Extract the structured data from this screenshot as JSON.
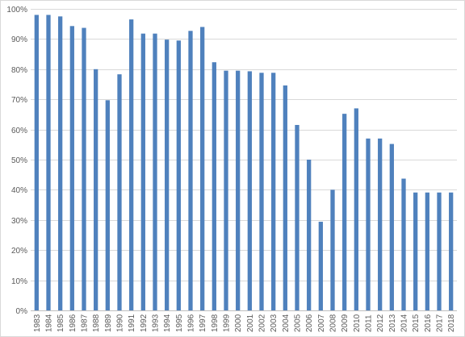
{
  "chart_data": {
    "type": "bar",
    "categories": [
      "1983",
      "1984",
      "1985",
      "1986",
      "1987",
      "1988",
      "1989",
      "1990",
      "1991",
      "1992",
      "1993",
      "1994",
      "1995",
      "1996",
      "1997",
      "1998",
      "1999",
      "2000",
      "2001",
      "2002",
      "2003",
      "2004",
      "2005",
      "2006",
      "2007",
      "2008",
      "2009",
      "2010",
      "2011",
      "2012",
      "2013",
      "2014",
      "2015",
      "2016",
      "2017",
      "2018"
    ],
    "values": [
      98,
      98,
      97.5,
      94.3,
      93.7,
      80,
      69.7,
      78.3,
      96.5,
      91.8,
      91.8,
      89.8,
      89.5,
      92.7,
      94,
      82.3,
      79.5,
      79.5,
      79.3,
      78.8,
      78.8,
      74.6,
      61.5,
      50,
      29.4,
      40,
      65.2,
      67,
      57,
      57,
      55.2,
      43.7,
      39.1,
      39.1,
      39.1,
      39.1
    ],
    "title": "",
    "xlabel": "",
    "ylabel": "",
    "ylim": [
      0,
      100
    ],
    "yticks": [
      "0%",
      "10%",
      "20%",
      "30%",
      "40%",
      "50%",
      "60%",
      "70%",
      "80%",
      "90%",
      "100%"
    ],
    "bar_color": "#4f81bd",
    "grid": true,
    "legend": "none"
  }
}
